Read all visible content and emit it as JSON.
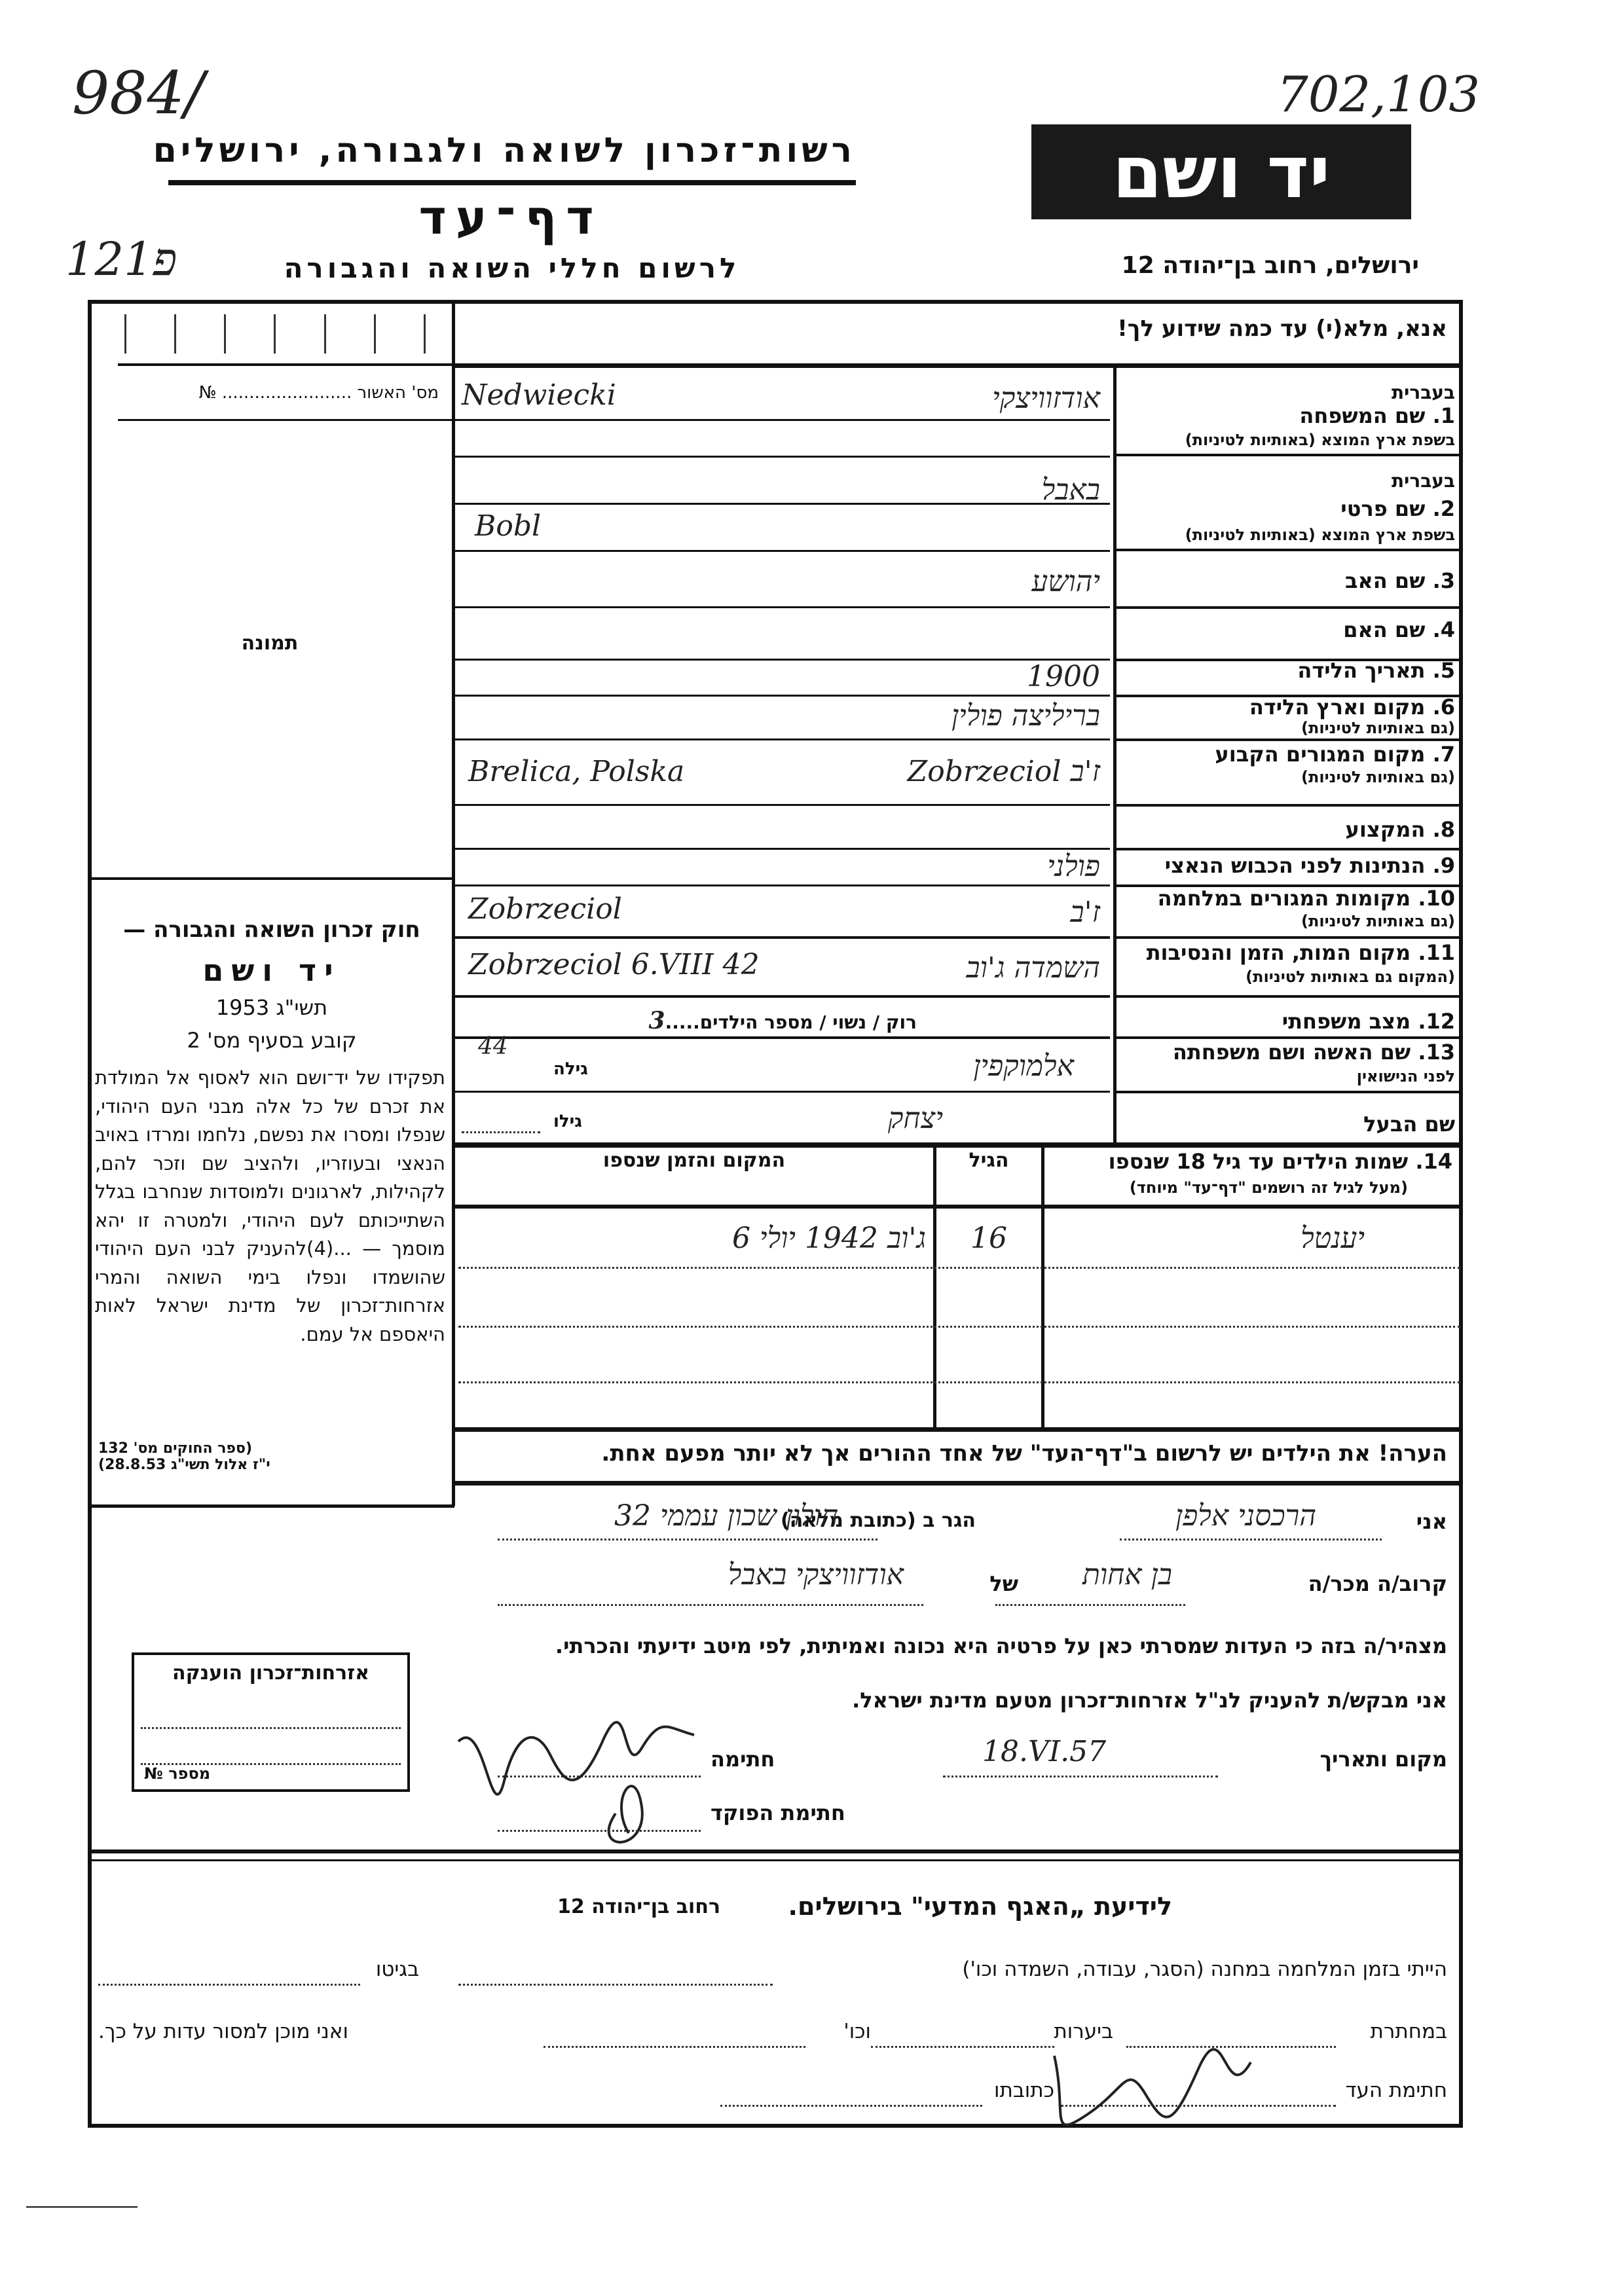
{
  "annotations": {
    "top_left": "984/",
    "left_code": "121פ",
    "top_right": "702,103"
  },
  "header": {
    "authority": "רשות־זכרון לשואה ולגבורה, ירושלים",
    "title": "דף־עד",
    "subtitle": "לרשום חללי השואה והגבורה",
    "logo": "יד ושם",
    "address": "ירושלים, רחוב בן־יהודה 12"
  },
  "instruction": "אנא, מלא(י) עד כמה שידוע לך!",
  "left": {
    "approval_label": "מס' האשור",
    "approval_no": "№",
    "photo_label": "תמונה",
    "law_title": "חוק זכרון השואה והגבורה —",
    "law_name": "יד ושם",
    "law_year": "תשי\"ג 1953",
    "law_clause": "קובע בסעיף מס' 2",
    "law_text": "תפקידו של יד־ושם הוא לאסוף אל המולדת את זכרם של כל אלה מבני העם היהודי, שנפלו ומסרו את נפשם, נלחמו ומרדו באויב הנאצי ובעוזריו, ולהציב שם וזכר להם, לקהילות, לארגונים ולמוסדות שנחרבו בגלל השתייכותם לעם היהודי, ולמטרה זו יהא מוסמך — ...(4)להעניק לבני העם היהודי שהושמדו ונפלו בימי השואה והמרי אזרחות־זכרון של מדינת ישראל לאות היאספם אל עמם.",
    "law_ref1": "(ספר החוקים מס' 132",
    "law_ref2": "י\"ז אלול תשי\"ג 28.8.53)",
    "citizenship_box": "אזרחות־זכרון הוענקה",
    "number_label": "מספר",
    "number_sign": "№"
  },
  "fields": {
    "f1": {
      "label": "1. שם המשפחה",
      "sub": "בשפת ארץ המוצא (באותיות לטיניות)",
      "hebrew_tag": "בעברית",
      "value_he": "אודזוויצקי",
      "value_lat": "Nedwiecki"
    },
    "f2": {
      "label": "2. שם פרטי",
      "sub": "בשפת ארץ המוצא (באותיות לטיניות)",
      "hebrew_tag": "בעברית",
      "value_he": "באבל",
      "value_lat": "Bobl"
    },
    "f3": {
      "label": "3. שם האב",
      "value": "יהושע"
    },
    "f4": {
      "label": "4. שם האם",
      "value": ""
    },
    "f5": {
      "label": "5. תאריך הלידה",
      "value": "1900"
    },
    "f6": {
      "label": "6. מקום וארץ הלידה",
      "sub": "(גם באותיות לטיניות)",
      "value": "בריליצה פולין"
    },
    "f7": {
      "label": "7. מקום המגורים הקבוע",
      "sub": "(גם באותיות לטיניות)",
      "value_lat": "Brelica, Polska",
      "value_he": "Zobrzeciol ז'ב"
    },
    "f8": {
      "label": "8. המקצוע",
      "value": ""
    },
    "f9": {
      "label": "9. הנתינות לפני הכבוש הנאצי",
      "value": "פולני"
    },
    "f10": {
      "label": "10. מקומות המגורים במלחמה",
      "sub": "(גם באותיות לטיניות)",
      "value_lat": "Zobrzeciol",
      "value_he": "ז'ב"
    },
    "f11": {
      "label": "11. מקום המות, הזמן והנסיבות",
      "sub": "(המקום גם באותיות לטיניות)",
      "value_lat": "Zobrzeciol  6.VIII 42",
      "value_he": "השמדה ג'וב"
    },
    "f12": {
      "label": "12. מצב משפחתי",
      "options": "רוק / נשוי / מספר הילדים",
      "children": "3"
    },
    "f13": {
      "label": "13. שם האשה ושם משפחתה",
      "sub": "לפני הנישואין",
      "value": "אלמוקפין",
      "age_label": "גילה",
      "age": "44"
    },
    "husband": {
      "label": "שם הבעל",
      "value": "יצחק",
      "age_label": "גילו"
    }
  },
  "children": {
    "label": "14. שמות הילדים עד גיל 18 שנספו",
    "sub": "(מעל לגיל זה רושמים \"דף־עד\" מיוחד)",
    "age_header": "הגיל",
    "place_header": "המקום והזמן שנספו",
    "rows": [
      {
        "name": "יענטל",
        "age": "16",
        "place": "ג'וב 1942 יולי 6"
      }
    ]
  },
  "note": "הערה! את הילדים יש לרשום ב\"דף־העד\" של אחד ההורים אך לא יותר מפעם אחת.",
  "testimony": {
    "i": "אני",
    "name": "הרכסני אלפן",
    "lives": "הגר ב (כתובת מלאה)",
    "address": "חולון שכון עממי 32",
    "relative": "קרוב/ה מכר/ה",
    "relation": "בן אחות",
    "of": "של",
    "of_name": "אודזוויצקי באבל",
    "declare": "מצהיר/ה בזה כי העדות שמסרתי כאן על פרטיה היא נכונה ואמיתית, לפי מיטב ידיעתי והכרתי.",
    "request": "אני מבקש/ת להעניק לנ\"ל אזרחות־זכרון מטעם מדינת ישראל.",
    "place_date": "מקום ותאריך",
    "date": "18.VI.57",
    "signature": "חתימה",
    "official": "חתימת הפוקד"
  },
  "bottom": {
    "title": "לידיעת „האגף המדעי\" בירושלים.",
    "addr": "רחוב בן־יהודה 12",
    "l1a": "הייתי בזמן המלחמה במחנה (הסגר, עבודה, השמדה וכו')",
    "l1b": "בגיטו",
    "l2a": "במחתרת",
    "l2b": "ביערות",
    "l2c": "וכו'",
    "l2d": "ואני מוכן למסור עדות על כך.",
    "l3a": "חתימת העד",
    "l3b": "כתובתו"
  }
}
